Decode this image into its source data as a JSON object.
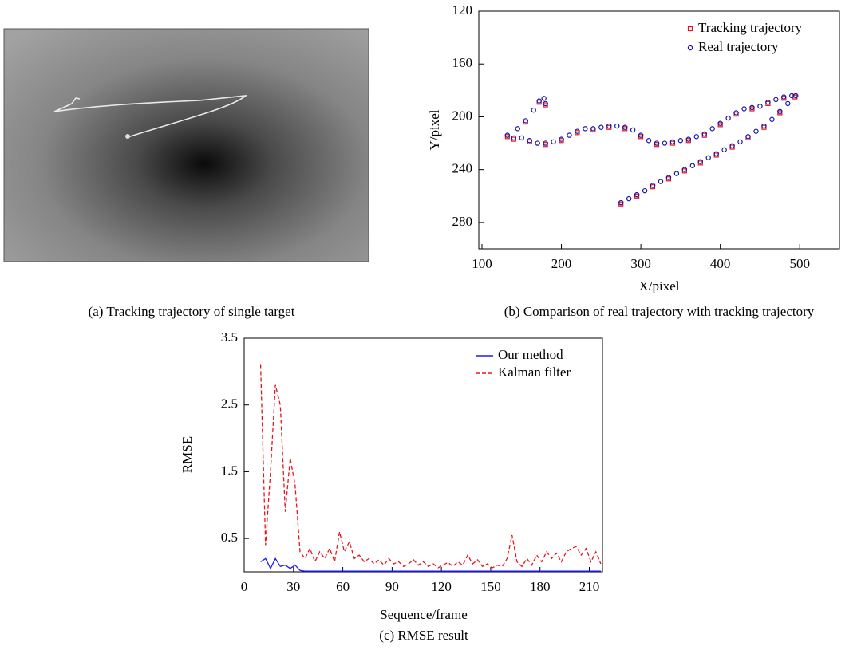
{
  "chart_data": [
    {
      "type": "image",
      "caption": "(a) Tracking trajectory of single target"
    },
    {
      "type": "scatter",
      "caption": "(b) Comparison of real trajectory with tracking trajectory",
      "xlabel": "X/pixel",
      "ylabel": "Y/pixel",
      "xlim": [
        96,
        550
      ],
      "xticks": [
        100,
        200,
        300,
        400,
        500
      ],
      "ylim": [
        120,
        300
      ],
      "yticks": [
        120,
        160,
        200,
        240,
        280
      ],
      "y_inverted": true,
      "legend": "upper right",
      "series": [
        {
          "name": "Tracking trajectory",
          "color": "#e8141c",
          "marker": "square",
          "x": [
            275,
            295,
            315,
            335,
            355,
            375,
            395,
            415,
            435,
            455,
            475,
            494,
            480,
            460,
            440,
            420,
            400,
            380,
            360,
            340,
            320,
            300,
            280,
            260,
            240,
            220,
            200,
            180,
            160,
            140,
            132,
            155,
            172,
            180
          ],
          "values": [
            266,
            260,
            253,
            247,
            241,
            235,
            229,
            223,
            216,
            208,
            197,
            185,
            186,
            190,
            194,
            198,
            206,
            214,
            218,
            220,
            221,
            215,
            209,
            208,
            210,
            212,
            218,
            221,
            219,
            217,
            215,
            204,
            189,
            191
          ]
        },
        {
          "name": "Real trajectory",
          "color": "#1a14a8",
          "marker": "circle",
          "x": [
            275,
            285,
            295,
            305,
            315,
            325,
            335,
            345,
            355,
            365,
            375,
            385,
            395,
            405,
            415,
            425,
            435,
            445,
            455,
            465,
            475,
            485,
            495,
            490,
            480,
            470,
            460,
            450,
            440,
            430,
            420,
            410,
            400,
            390,
            380,
            370,
            360,
            350,
            340,
            330,
            320,
            310,
            300,
            290,
            280,
            270,
            260,
            250,
            240,
            230,
            220,
            210,
            200,
            190,
            180,
            170,
            160,
            150,
            140,
            132,
            145,
            155,
            165,
            172,
            178,
            180
          ],
          "values": [
            265,
            262,
            259,
            256,
            252,
            249,
            246,
            243,
            240,
            237,
            234,
            231,
            228,
            225,
            222,
            219,
            215,
            211,
            207,
            202,
            196,
            190,
            184,
            184,
            185,
            187,
            189,
            192,
            193,
            194,
            197,
            201,
            205,
            209,
            213,
            215,
            217,
            218,
            219,
            220,
            220,
            218,
            214,
            210,
            208,
            207,
            207,
            208,
            209,
            209,
            211,
            214,
            217,
            219,
            220,
            220,
            218,
            216,
            216,
            214,
            209,
            203,
            195,
            188,
            186,
            190
          ]
        }
      ]
    },
    {
      "type": "line",
      "caption": "(c) RMSE result",
      "xlabel": "Sequence/frame",
      "ylabel": "RMSE",
      "xlim": [
        0,
        218
      ],
      "xticks": [
        0,
        30,
        60,
        90,
        120,
        150,
        180,
        210
      ],
      "ylim": [
        0,
        3.5
      ],
      "yticks": [
        0.5,
        1.5,
        2.5,
        3.5
      ],
      "legend": "upper right",
      "x": [
        10,
        13,
        16,
        19,
        22,
        25,
        28,
        31,
        34,
        37,
        40,
        43,
        46,
        49,
        52,
        55,
        58,
        61,
        64,
        67,
        70,
        73,
        76,
        79,
        82,
        85,
        88,
        91,
        94,
        97,
        100,
        103,
        106,
        109,
        112,
        115,
        118,
        121,
        124,
        127,
        130,
        133,
        136,
        139,
        142,
        145,
        148,
        151,
        154,
        157,
        160,
        163,
        166,
        169,
        172,
        175,
        178,
        181,
        184,
        187,
        190,
        193,
        196,
        199,
        202,
        205,
        208,
        211,
        214,
        217
      ],
      "series": [
        {
          "name": "Our method",
          "color": "#1a1aff",
          "dash": "solid",
          "values": [
            0.15,
            0.2,
            0.05,
            0.2,
            0.08,
            0.1,
            0.05,
            0.1,
            0.02,
            0.01,
            0.01,
            0.01,
            0.01,
            0.01,
            0.01,
            0.01,
            0.01,
            0.01,
            0.01,
            0.01,
            0.01,
            0.01,
            0.01,
            0.01,
            0.01,
            0.01,
            0.01,
            0.01,
            0.01,
            0.01,
            0.01,
            0.01,
            0.01,
            0.01,
            0.01,
            0.01,
            0.01,
            0.01,
            0.01,
            0.01,
            0.01,
            0.01,
            0.01,
            0.01,
            0.01,
            0.01,
            0.01,
            0.01,
            0.01,
            0.01,
            0.01,
            0.01,
            0.01,
            0.01,
            0.01,
            0.01,
            0.01,
            0.01,
            0.01,
            0.01,
            0.01,
            0.01,
            0.01,
            0.01,
            0.01,
            0.01,
            0.01,
            0.01,
            0.01,
            0.01
          ]
        },
        {
          "name": "Kalman filter",
          "color": "#e8141c",
          "dash": "dashed",
          "values": [
            3.1,
            0.4,
            1.5,
            2.8,
            2.5,
            0.9,
            1.7,
            1.3,
            0.3,
            0.2,
            0.35,
            0.15,
            0.3,
            0.2,
            0.35,
            0.15,
            0.6,
            0.3,
            0.45,
            0.2,
            0.25,
            0.15,
            0.2,
            0.12,
            0.18,
            0.1,
            0.2,
            0.12,
            0.15,
            0.08,
            0.12,
            0.18,
            0.1,
            0.15,
            0.08,
            0.12,
            0.06,
            0.1,
            0.14,
            0.08,
            0.15,
            0.1,
            0.25,
            0.12,
            0.18,
            0.08,
            0.12,
            0.06,
            0.1,
            0.08,
            0.2,
            0.55,
            0.15,
            0.08,
            0.2,
            0.1,
            0.25,
            0.15,
            0.3,
            0.2,
            0.28,
            0.15,
            0.3,
            0.35,
            0.38,
            0.25,
            0.35,
            0.15,
            0.3,
            0.12
          ]
        }
      ]
    }
  ]
}
